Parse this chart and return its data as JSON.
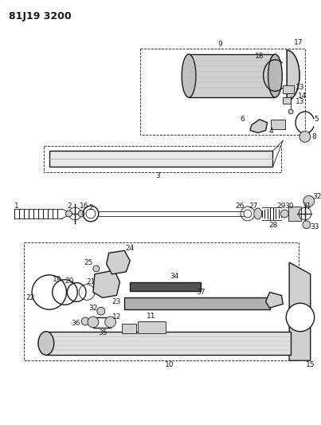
{
  "title": "81J19 3200",
  "bg_color": "#ffffff",
  "line_color": "#1a1a1a",
  "gray_fill": "#d0d0d0",
  "dark_fill": "#888888",
  "title_fontsize": 9,
  "label_fontsize": 6.5,
  "figsize": [
    4.03,
    5.33
  ],
  "dpi": 100
}
